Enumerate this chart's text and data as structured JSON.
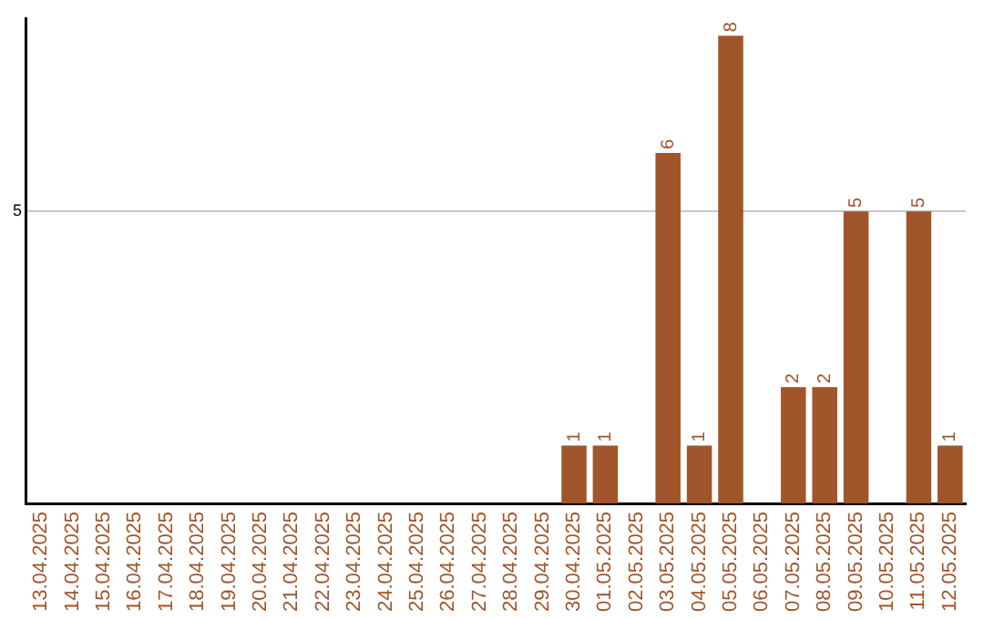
{
  "chart_data": {
    "type": "bar",
    "categories": [
      "13.04.2025",
      "14.04.2025",
      "15.04.2025",
      "16.04.2025",
      "17.04.2025",
      "18.04.2025",
      "19.04.2025",
      "20.04.2025",
      "21.04.2025",
      "22.04.2025",
      "23.04.2025",
      "24.04.2025",
      "25.04.2025",
      "26.04.2025",
      "27.04.2025",
      "28.04.2025",
      "29.04.2025",
      "30.04.2025",
      "01.05.2025",
      "02.05.2025",
      "03.05.2025",
      "04.05.2025",
      "05.05.2025",
      "06.05.2025",
      "07.05.2025",
      "08.05.2025",
      "09.05.2025",
      "10.05.2025",
      "11.05.2025",
      "12.05.2025"
    ],
    "values": [
      null,
      null,
      null,
      null,
      null,
      null,
      null,
      null,
      null,
      null,
      null,
      null,
      null,
      null,
      null,
      null,
      null,
      1,
      1,
      null,
      6,
      1,
      8,
      null,
      2,
      2,
      5,
      null,
      5,
      1
    ],
    "data_labels": true,
    "color": "#a0552a",
    "ylim": [
      0,
      8.3
    ],
    "yticks": [
      {
        "value": 0,
        "label": null
      },
      5
    ],
    "grid": "y",
    "legend": false
  }
}
